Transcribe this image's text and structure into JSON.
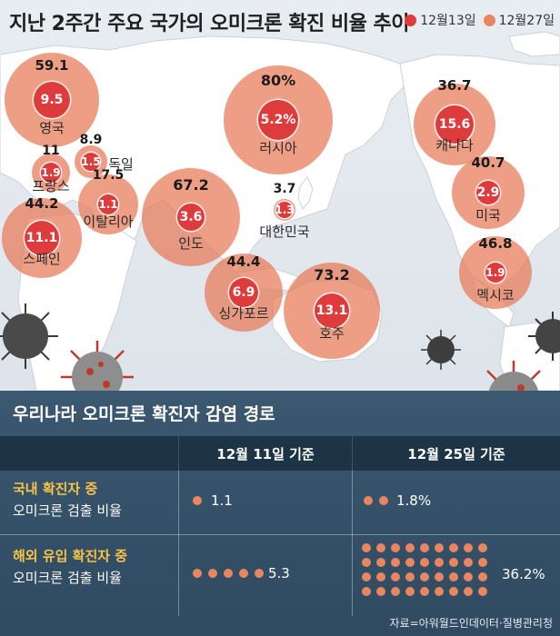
{
  "title": "지난 2주간 주요 국가의 오미크론 확진 비율 추이",
  "legend": [
    {
      "label": "12월13일",
      "color": "#de3c3c"
    },
    {
      "label": "12월27일",
      "color": "#e8875f"
    }
  ],
  "map_data": {
    "unit": "%",
    "countries": [
      {
        "name": "영국",
        "dec13": "9.5",
        "dec27": "59.1"
      },
      {
        "name": "독일",
        "dec13": "1.5",
        "dec27": "8.9"
      },
      {
        "name": "프랑스",
        "dec13": "1.9",
        "dec27": "11"
      },
      {
        "name": "이탈리아",
        "dec13": "1.1",
        "dec27": "17.5"
      },
      {
        "name": "스페인",
        "dec13": "11.1",
        "dec27": "44.2"
      },
      {
        "name": "러시아",
        "dec13": "5.2%",
        "dec27": "80%"
      },
      {
        "name": "인도",
        "dec13": "3.6",
        "dec27": "67.2"
      },
      {
        "name": "대한민국",
        "dec13": "1.3",
        "dec27": "3.7"
      },
      {
        "name": "싱가포르",
        "dec13": "6.9",
        "dec27": "44.4"
      },
      {
        "name": "호주",
        "dec13": "13.1",
        "dec27": "73.2"
      },
      {
        "name": "캐나다",
        "dec13": "15.6",
        "dec27": "36.7"
      },
      {
        "name": "미국",
        "dec13": "2.9",
        "dec27": "40.7"
      },
      {
        "name": "멕시코",
        "dec13": "1.9",
        "dec27": "46.8"
      }
    ]
  },
  "table": {
    "title": "우리나라 오미크론 확진자 감염 경로",
    "columns": [
      "12월 11일 기준",
      "12월 25일 기준"
    ],
    "rows": [
      {
        "label_hl": "국내 확진자 중",
        "label": "오미크론 검출 비율",
        "dec11": "1.1",
        "dec11_dots": 1,
        "dec25": "1.8%",
        "dec25_dots": 2
      },
      {
        "label_hl": "해외 유입 확진자 중",
        "label": "오미크론 검출 비율",
        "dec11": "5.3",
        "dec11_dots": 5,
        "dec25": "36.2%",
        "dec25_dots": 36
      }
    ],
    "dot_color": "#e8875f"
  },
  "source": "자료=아워월드인데이터·질병관리청"
}
